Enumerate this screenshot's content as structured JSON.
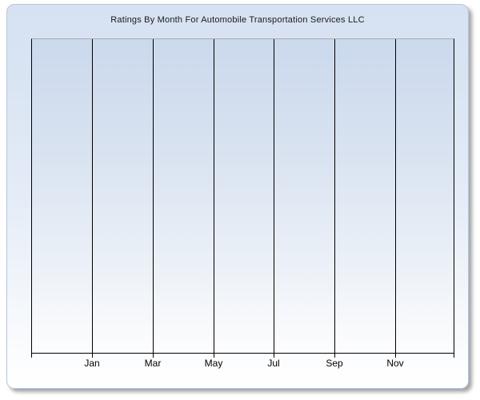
{
  "chart": {
    "title": "Ratings By Month For Automobile Transportation Services LLC",
    "x_labels": [
      "Jan",
      "Mar",
      "May",
      "Jul",
      "Sep",
      "Nov"
    ]
  },
  "chart_data": {
    "type": "line",
    "title": "Ratings By Month For Automobile Transportation Services LLC",
    "categories": [
      "Jan",
      "Mar",
      "May",
      "Jul",
      "Sep",
      "Nov"
    ],
    "series": [],
    "xlabel": "",
    "ylabel": "",
    "y_tick_labels": [],
    "x_gridlines": true,
    "y_gridlines": false,
    "legend_position": "none",
    "plot_empty": true
  },
  "colors": {
    "panel_gradient_top": "#d6e1f2",
    "panel_gradient_bottom": "#ffffff",
    "plot_gradient_top": "#cbd9ed",
    "plot_gradient_bottom": "#fdfdfe",
    "panel_border": "#b9c6da",
    "plot_top_border": "#a4abb4",
    "axis_line": "#000000",
    "gridline": "#000000",
    "title_text": "#1b1b1b",
    "label_text": "#000000",
    "page_background": "#ffffff"
  }
}
